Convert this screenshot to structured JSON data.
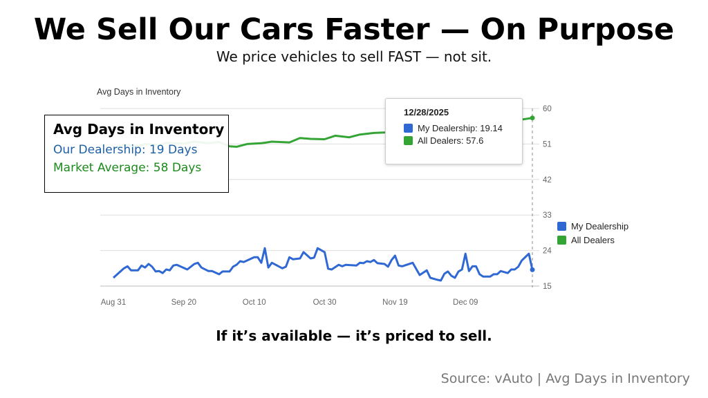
{
  "title": "We Sell Our Cars Faster — On Purpose",
  "subtitle": "We price vehicles to sell FAST — not sit.",
  "tagline": "If it’s available — it’s priced to sell.",
  "source": "Source: vAuto | Avg Days in Inventory",
  "callout": {
    "heading": "Avg Days in Inventory",
    "dealership": "Our Dealership: 19 Days",
    "market": "Market Average: 58 Days"
  },
  "tooltip": {
    "date": "12/28/2025",
    "dealership": "My Dealership: 19.14",
    "all_dealers": "All Dealers: 57.6"
  },
  "colors": {
    "dealership": "#2f68d2",
    "all_dealers": "#34a534"
  },
  "chart_data": {
    "type": "line",
    "ylabel": "Avg Days in Inventory",
    "ylim": [
      15,
      60
    ],
    "yticks": [
      "15",
      "24",
      "33",
      "42",
      "51",
      "60"
    ],
    "xlim": [
      "2025-08-31",
      "2025-12-28"
    ],
    "xticks": [
      {
        "date": "2025-08-31",
        "label": "Aug 31"
      },
      {
        "date": "2025-09-20",
        "label": "Sep 20"
      },
      {
        "date": "2025-10-10",
        "label": "Oct 10"
      },
      {
        "date": "2025-10-30",
        "label": "Oct 30"
      },
      {
        "date": "2025-11-19",
        "label": "Nov 19"
      },
      {
        "date": "2025-12-09",
        "label": "Dec 09"
      }
    ],
    "grid": true,
    "legend_position": "right",
    "series": [
      {
        "name": "My Dealership",
        "color": "#2f68d2",
        "points": [
          [
            "2025-08-31",
            17.1
          ],
          [
            "2025-09-03",
            19.5
          ],
          [
            "2025-09-04",
            20
          ],
          [
            "2025-09-05",
            19
          ],
          [
            "2025-09-07",
            19
          ],
          [
            "2025-09-08",
            20.2
          ],
          [
            "2025-09-09",
            19.7
          ],
          [
            "2025-09-10",
            20.6
          ],
          [
            "2025-09-11",
            19.9
          ],
          [
            "2025-09-12",
            18.7
          ],
          [
            "2025-09-13",
            18.8
          ],
          [
            "2025-09-14",
            18.3
          ],
          [
            "2025-09-15",
            19.2
          ],
          [
            "2025-09-16",
            19
          ],
          [
            "2025-09-17",
            20.2
          ],
          [
            "2025-09-18",
            20.4
          ],
          [
            "2025-09-21",
            19.2
          ],
          [
            "2025-09-23",
            20.6
          ],
          [
            "2025-09-24",
            20.9
          ],
          [
            "2025-09-25",
            19.7
          ],
          [
            "2025-09-27",
            18.8
          ],
          [
            "2025-09-28",
            18.8
          ],
          [
            "2025-09-30",
            18
          ],
          [
            "2025-10-01",
            18.7
          ],
          [
            "2025-10-03",
            18.7
          ],
          [
            "2025-10-04",
            19.9
          ],
          [
            "2025-10-05",
            20.4
          ],
          [
            "2025-10-06",
            21.3
          ],
          [
            "2025-10-07",
            21.1
          ],
          [
            "2025-10-10",
            22.3
          ],
          [
            "2025-10-11",
            22.3
          ],
          [
            "2025-10-12",
            20.9
          ],
          [
            "2025-10-13",
            24.6
          ],
          [
            "2025-10-14",
            19.7
          ],
          [
            "2025-10-15",
            20.9
          ],
          [
            "2025-10-18",
            19.5
          ],
          [
            "2025-10-19",
            19.9
          ],
          [
            "2025-10-20",
            22.3
          ],
          [
            "2025-10-21",
            21.8
          ],
          [
            "2025-10-23",
            22
          ],
          [
            "2025-10-24",
            23.6
          ],
          [
            "2025-10-26",
            22
          ],
          [
            "2025-10-27",
            22.2
          ],
          [
            "2025-10-28",
            24.6
          ],
          [
            "2025-10-30",
            23.6
          ],
          [
            "2025-10-31",
            19.4
          ],
          [
            "2025-11-01",
            19.2
          ],
          [
            "2025-11-03",
            20.4
          ],
          [
            "2025-11-04",
            20
          ],
          [
            "2025-11-05",
            20.4
          ],
          [
            "2025-11-08",
            20.2
          ],
          [
            "2025-11-09",
            20.9
          ],
          [
            "2025-11-10",
            20.8
          ],
          [
            "2025-11-11",
            21.3
          ],
          [
            "2025-11-12",
            21.1
          ],
          [
            "2025-11-13",
            21.6
          ],
          [
            "2025-11-14",
            20.8
          ],
          [
            "2025-11-16",
            20.6
          ],
          [
            "2025-11-17",
            19.9
          ],
          [
            "2025-11-18",
            21.6
          ],
          [
            "2025-11-19",
            22.7
          ],
          [
            "2025-11-20",
            20.2
          ],
          [
            "2025-11-21",
            20
          ],
          [
            "2025-11-24",
            20.9
          ],
          [
            "2025-11-26",
            17.8
          ],
          [
            "2025-11-28",
            19
          ],
          [
            "2025-11-29",
            17.1
          ],
          [
            "2025-12-01",
            16.6
          ],
          [
            "2025-12-02",
            16.4
          ],
          [
            "2025-12-03",
            18.1
          ],
          [
            "2025-12-04",
            18.7
          ],
          [
            "2025-12-05",
            17.6
          ],
          [
            "2025-12-06",
            17.1
          ],
          [
            "2025-12-07",
            18.7
          ],
          [
            "2025-12-08",
            19.2
          ],
          [
            "2025-12-09",
            23.2
          ],
          [
            "2025-12-10",
            18.8
          ],
          [
            "2025-12-11",
            20
          ],
          [
            "2025-12-12",
            20
          ],
          [
            "2025-12-13",
            18
          ],
          [
            "2025-12-14",
            17.4
          ],
          [
            "2025-12-16",
            17.4
          ],
          [
            "2025-12-17",
            18
          ],
          [
            "2025-12-18",
            18
          ],
          [
            "2025-12-19",
            18.8
          ],
          [
            "2025-12-21",
            18.3
          ],
          [
            "2025-12-22",
            19.2
          ],
          [
            "2025-12-23",
            19.2
          ],
          [
            "2025-12-24",
            19.9
          ],
          [
            "2025-12-25",
            21.5
          ],
          [
            "2025-12-27",
            23.2
          ],
          [
            "2025-12-28",
            19.14
          ]
        ]
      },
      {
        "name": "All Dealers",
        "color": "#34a534",
        "points": [
          [
            "2025-08-31",
            50
          ],
          [
            "2025-09-03",
            50.8
          ],
          [
            "2025-09-07",
            50.4
          ],
          [
            "2025-09-09",
            51
          ],
          [
            "2025-09-13",
            50.7
          ],
          [
            "2025-09-15",
            51.3
          ],
          [
            "2025-09-20",
            51.1
          ],
          [
            "2025-09-23",
            51.6
          ],
          [
            "2025-09-27",
            51.2
          ],
          [
            "2025-09-30",
            51.5
          ],
          [
            "2025-10-03",
            50.4
          ],
          [
            "2025-10-05",
            50.3
          ],
          [
            "2025-10-08",
            51
          ],
          [
            "2025-10-12",
            51.2
          ],
          [
            "2025-10-15",
            51.6
          ],
          [
            "2025-10-20",
            51.4
          ],
          [
            "2025-10-23",
            52.5
          ],
          [
            "2025-10-26",
            52.3
          ],
          [
            "2025-10-30",
            52.2
          ],
          [
            "2025-11-02",
            53.1
          ],
          [
            "2025-11-06",
            52.7
          ],
          [
            "2025-11-09",
            53.4
          ],
          [
            "2025-11-13",
            53.8
          ],
          [
            "2025-11-16",
            53.9
          ],
          [
            "2025-11-19",
            54.3
          ],
          [
            "2025-11-29",
            55
          ],
          [
            "2025-12-09",
            55.8
          ],
          [
            "2025-12-19",
            56.6
          ],
          [
            "2025-12-25",
            57.2
          ],
          [
            "2025-12-28",
            57.6
          ]
        ]
      }
    ]
  }
}
